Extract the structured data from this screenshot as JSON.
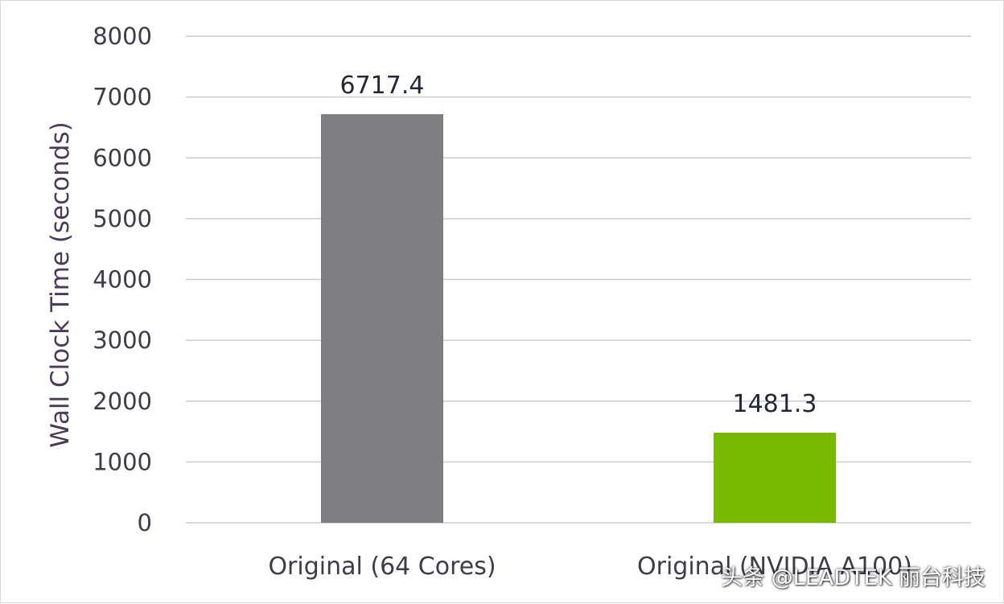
{
  "chart_data": {
    "type": "bar",
    "categories": [
      "Original (64 Cores)",
      "Original (NVIDIA A100)"
    ],
    "values": [
      6717.4,
      1481.3
    ],
    "data_labels": [
      "6717.4",
      "1481.3"
    ],
    "bar_colors": [
      "#7f7f81",
      "#76b900"
    ],
    "title": "",
    "xlabel": "",
    "ylabel": "Wall Clock Time (seconds)",
    "ylim": [
      0,
      8000
    ],
    "yticks": [
      0,
      1000,
      2000,
      3000,
      4000,
      5000,
      6000,
      7000,
      8000
    ],
    "grid": true,
    "legend": "none"
  },
  "watermark": "头条 @LEADTEK 丽台科技",
  "colors": {
    "gridline": "#c8cdd2",
    "axis_text": "#3c3c4a"
  }
}
